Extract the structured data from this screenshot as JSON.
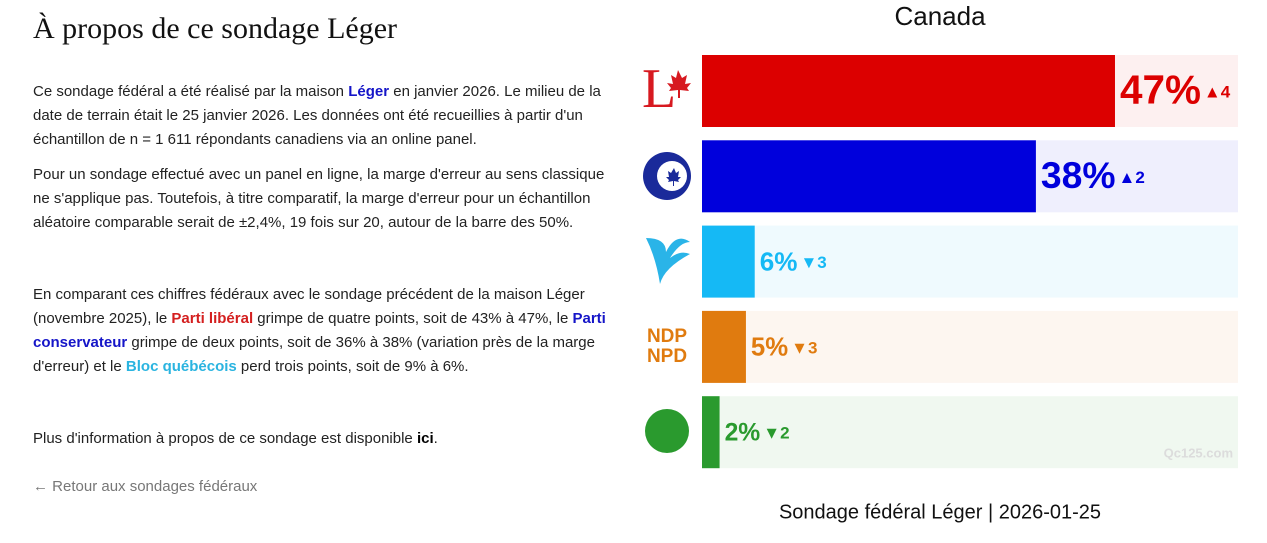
{
  "article": {
    "title": "À propos de ce sondage Léger",
    "paragraphs": [
      [
        {
          "text": "Ce sondage fédéral a été réalisé par la maison "
        },
        {
          "text": "Léger",
          "bold": true,
          "color": "#1515c8"
        },
        {
          "text": " en janvier 2026. Le milieu de la date de terrain était le 25 janvier 2026. Les données ont été recueillies à partir d'un échantillon de n = 1 611 répondants canadiens via an online panel."
        }
      ],
      [
        {
          "text": "Pour un sondage effectué avec un panel en ligne, la marge d'erreur au sens classique ne s'applique pas. Toutefois, à titre comparatif, la marge d'erreur pour un échantillon aléatoire comparable serait de ±2,4%, 19 fois sur 20, autour de la barre des 50%."
        }
      ],
      [
        {
          "text": "En comparant ces chiffres fédéraux avec le sondage précédent de la maison Léger (novembre 2025), le "
        },
        {
          "text": "Parti libéral",
          "bold": true,
          "color": "#d41f1f"
        },
        {
          "text": " grimpe de quatre points, soit de 43% à 47%, le "
        },
        {
          "text": "Parti conservateur",
          "bold": true,
          "color": "#1515c8"
        },
        {
          "text": " grimpe de deux points, soit de 36% à 38% (variation près de la marge d'erreur) et le "
        },
        {
          "text": "Bloc québécois",
          "bold": true,
          "color": "#2ab4e0"
        },
        {
          "text": " perd trois points, soit de 9% à 6%."
        }
      ],
      [
        {
          "text": "Plus d'information à propos de ce sondage est disponible "
        },
        {
          "text": "ici",
          "bold": true,
          "color": "#000000"
        },
        {
          "text": "."
        }
      ]
    ],
    "back_link": "← Retour aux sondages fédéraux"
  },
  "chart_data": {
    "type": "bar",
    "title": "Canada",
    "footer": "Sondage fédéral Léger | 2026-01-25",
    "watermark": "Qc125.com",
    "logo_text": [
      "NDP",
      "NPD"
    ],
    "values": [
      47,
      38,
      6,
      5,
      2
    ],
    "value_labels": [
      "47%",
      "38%",
      "6%",
      "5%",
      "2%"
    ],
    "changes": [
      4,
      2,
      -3,
      -3,
      -2
    ],
    "change_labels": [
      "▲4",
      "▲2",
      "▼3",
      "▼3",
      "▼2"
    ],
    "colors": [
      "#dc0000",
      "#0000dc",
      "#15b9f5",
      "#e07b0f",
      "#2a9a2e"
    ],
    "backgrounds": [
      "#fdf0f0",
      "#efeffd",
      "#effafe",
      "#fdf6f0",
      "#f0f8f0"
    ],
    "xlim": [
      0,
      61
    ]
  }
}
